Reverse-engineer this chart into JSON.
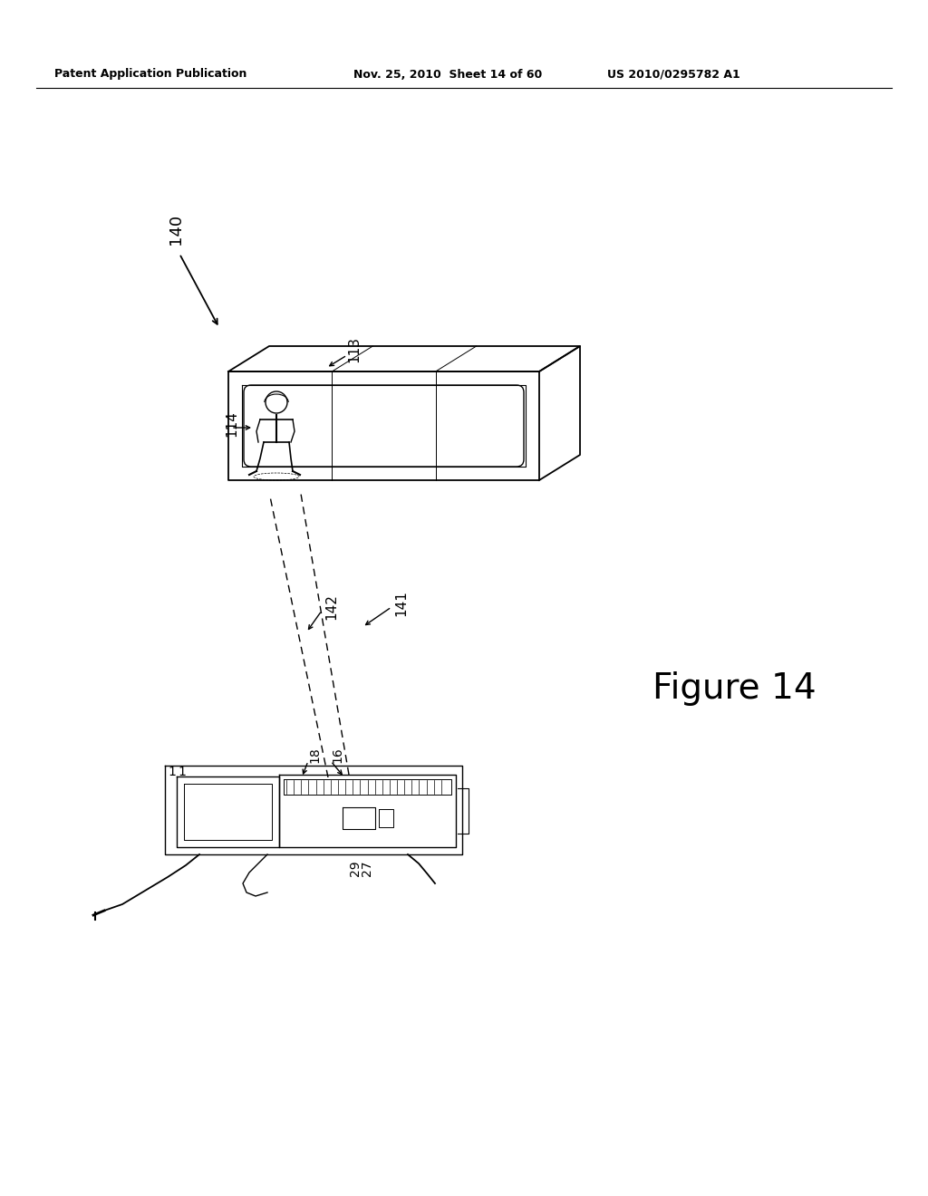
{
  "background_color": "#ffffff",
  "header_left": "Patent Application Publication",
  "header_mid": "Nov. 25, 2010  Sheet 14 of 60",
  "header_right": "US 2010/0295782 A1",
  "figure_label": "Figure 14",
  "label_140": "140",
  "label_113": "113",
  "label_114": "114",
  "label_141": "141",
  "label_142": "142",
  "label_16": "16",
  "label_18": "18",
  "label_1a": "1",
  "label_1b": "1",
  "label_27": "27",
  "label_29": "29"
}
